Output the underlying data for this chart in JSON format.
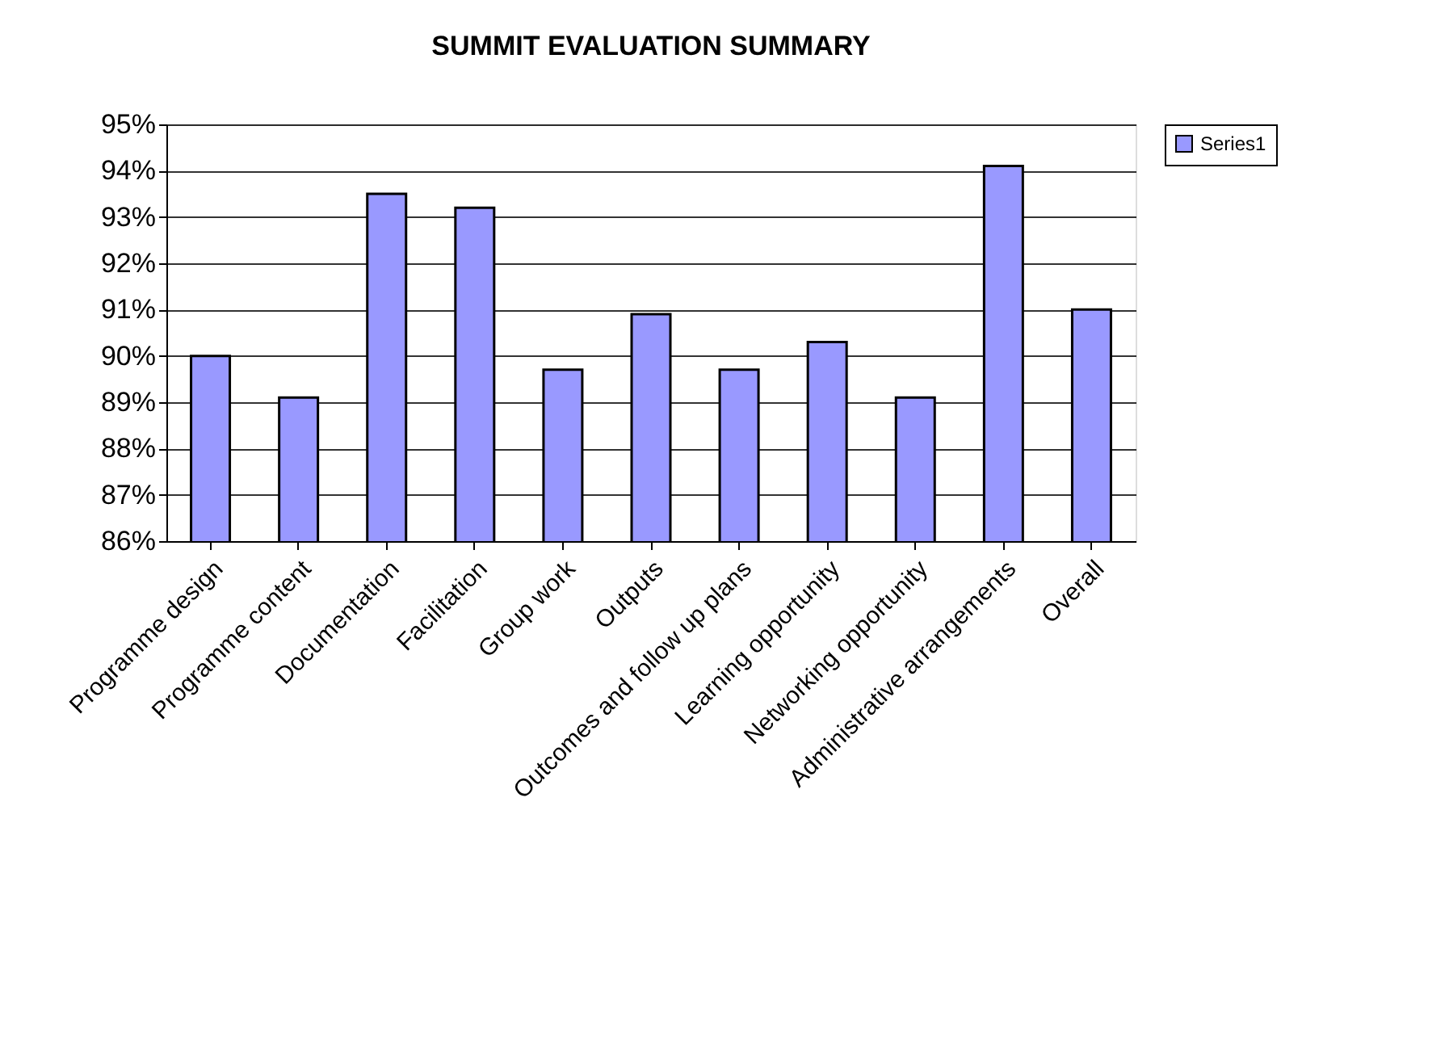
{
  "chart_data": {
    "type": "bar",
    "title": "SUMMIT EVALUATION SUMMARY",
    "categories": [
      "Programme design",
      "Programme content",
      "Documentation",
      "Facilitation",
      "Group work",
      "Outputs",
      "Outcomes and follow up plans",
      "Learning opportunity",
      "Networking opportunity",
      "Administrative arrangements",
      "Overall"
    ],
    "series": [
      {
        "name": "Series1",
        "color": "#9999ff",
        "values": [
          90.0,
          89.1,
          93.5,
          93.2,
          89.7,
          90.9,
          89.7,
          90.3,
          89.1,
          94.1,
          91.0
        ]
      }
    ],
    "ylim": [
      86,
      95
    ],
    "yticks": [
      {
        "value": 86,
        "label": "86%"
      },
      {
        "value": 87,
        "label": "87%"
      },
      {
        "value": 88,
        "label": "88%"
      },
      {
        "value": 89,
        "label": "89%"
      },
      {
        "value": 90,
        "label": "90%"
      },
      {
        "value": 91,
        "label": "91%"
      },
      {
        "value": 92,
        "label": "92%"
      },
      {
        "value": 93,
        "label": "93%"
      },
      {
        "value": 94,
        "label": "94%"
      },
      {
        "value": 95,
        "label": "95%"
      }
    ],
    "grid": "y",
    "legend": "right"
  }
}
